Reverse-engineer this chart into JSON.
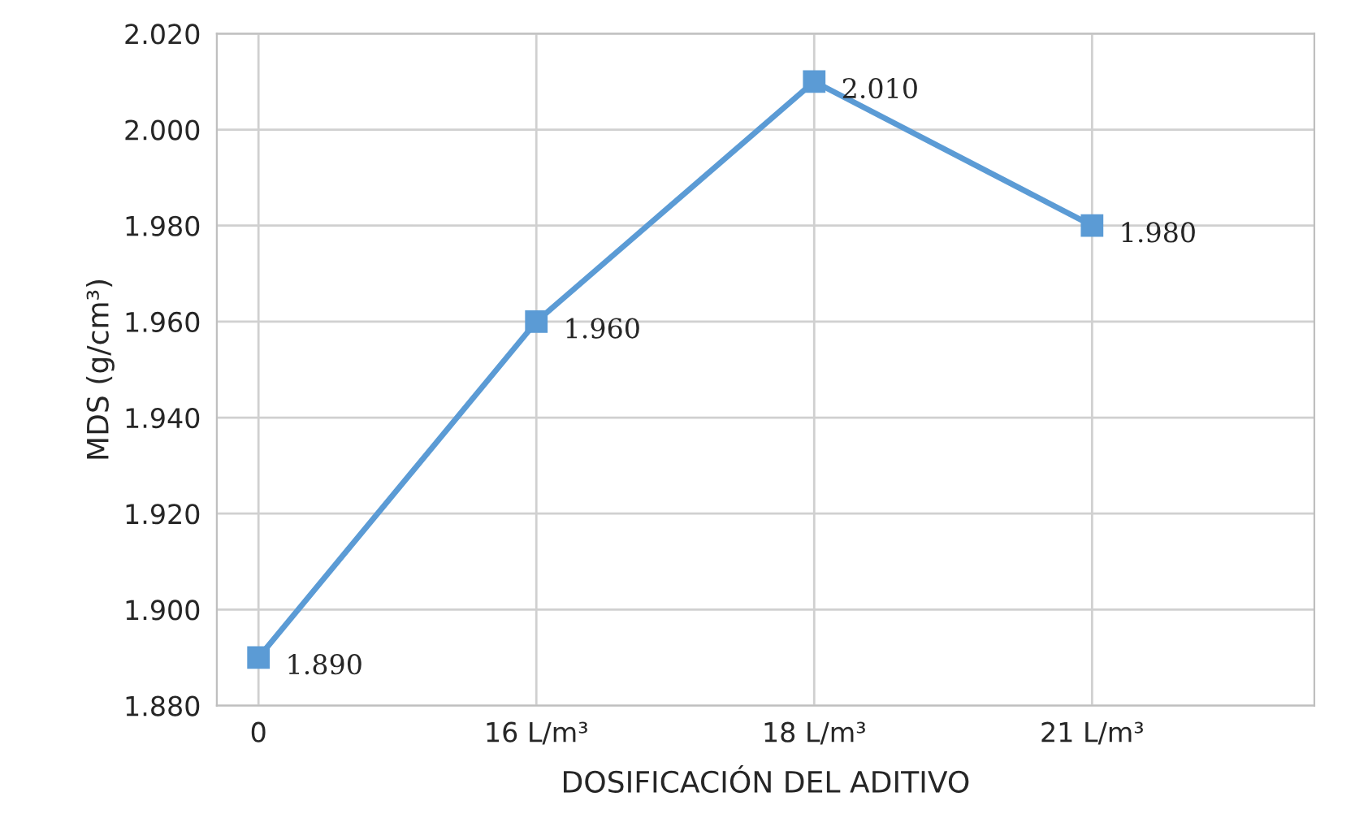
{
  "chart_data": {
    "type": "line",
    "xlabel": "DOSIFICACIÓN DEL ADITIVO",
    "ylabel": "MDS (g/cm³)",
    "categories": [
      "0",
      "16 L/m³",
      "18 L/m³",
      "21 L/m³"
    ],
    "series": [
      {
        "color": "#5b9bd5",
        "values": [
          1.89,
          1.96,
          2.01,
          1.98
        ],
        "value_labels": [
          "1.890",
          "1.960",
          "2.010",
          "1.980"
        ]
      }
    ],
    "ylim": [
      1.88,
      2.02
    ],
    "yticks": [
      {
        "value": 1.88,
        "label": "1.880"
      },
      {
        "value": 1.9,
        "label": "1.900"
      },
      {
        "value": 1.92,
        "label": "1.920"
      },
      {
        "value": 1.94,
        "label": "1.940"
      },
      {
        "value": 1.96,
        "label": "1.960"
      },
      {
        "value": 1.98,
        "label": "1.980"
      },
      {
        "value": 2.0,
        "label": "2.000"
      },
      {
        "value": 2.02,
        "label": "2.020"
      }
    ],
    "grid": true,
    "marker": "square",
    "line_style": "solid",
    "legend": false
  }
}
